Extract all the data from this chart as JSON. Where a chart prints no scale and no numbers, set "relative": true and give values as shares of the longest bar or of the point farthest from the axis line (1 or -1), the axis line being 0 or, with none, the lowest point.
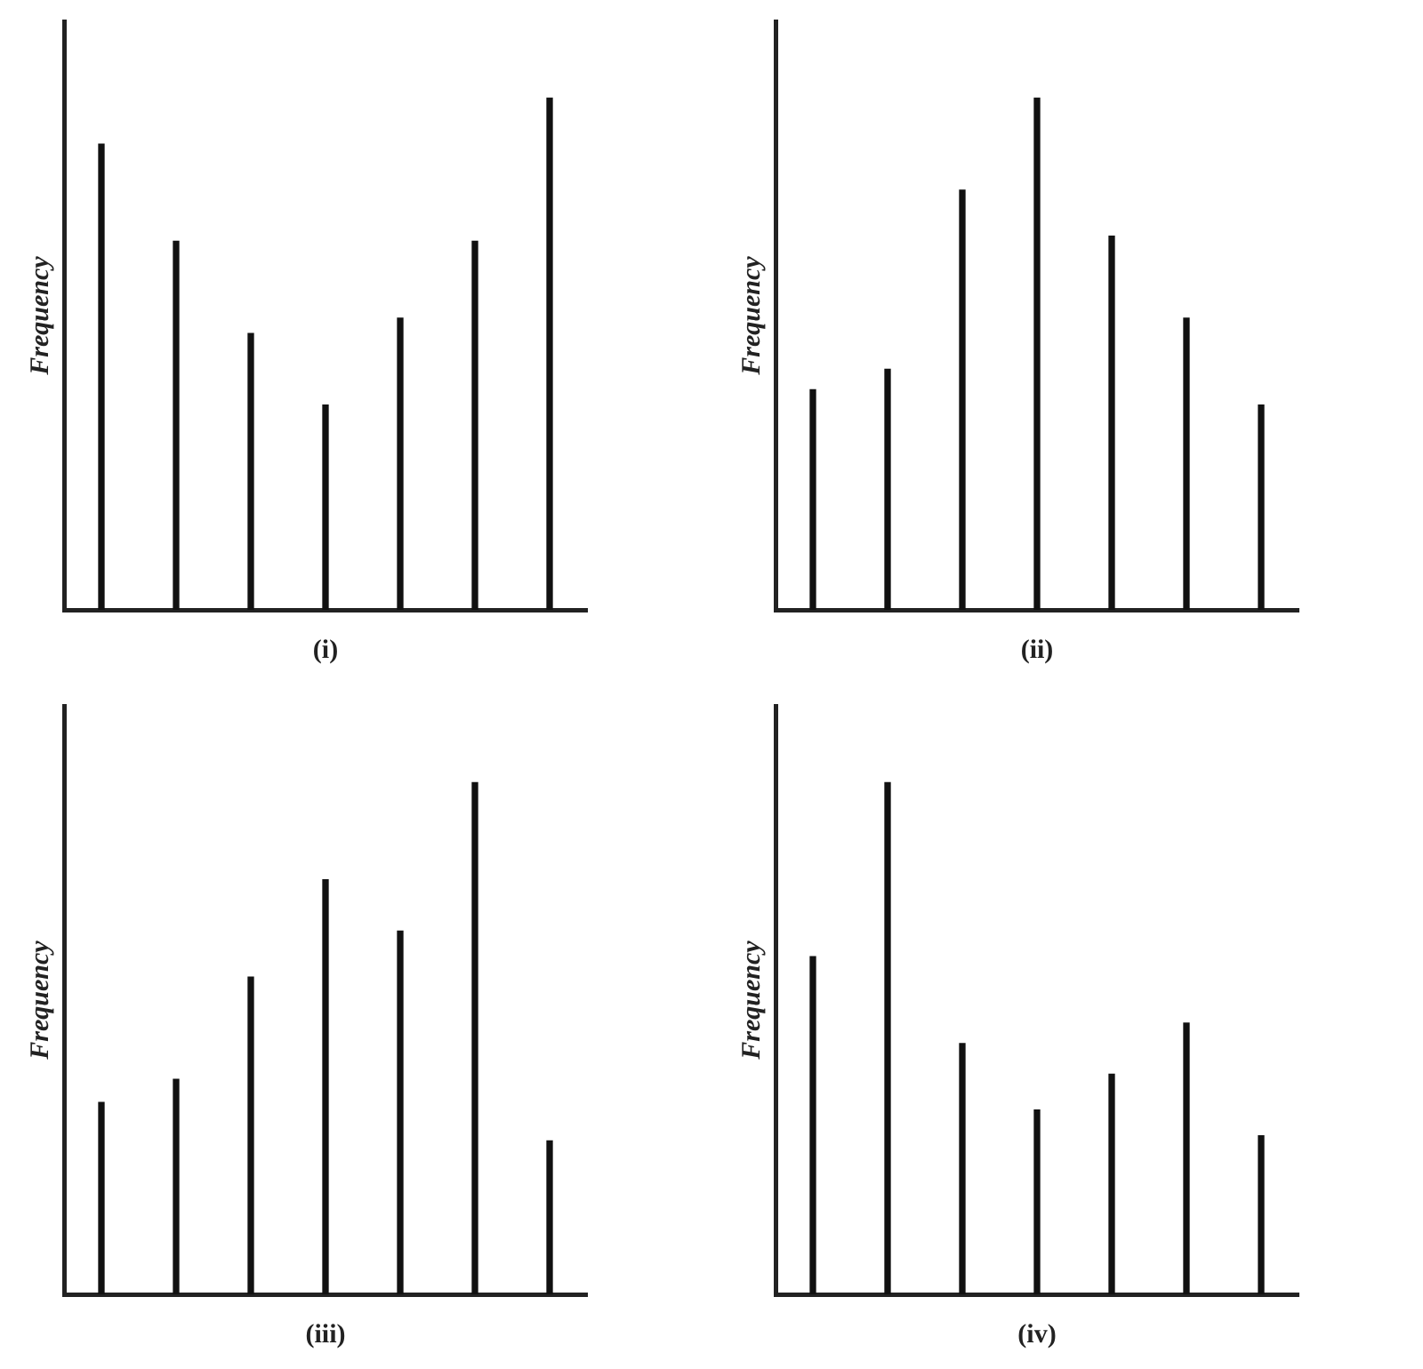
{
  "chart_data": [
    {
      "type": "bar",
      "relative": true,
      "xlabel": "(i)",
      "ylabel": "Frequency",
      "categories": [
        null,
        null,
        null,
        null,
        null,
        null,
        null
      ],
      "values": [
        0.91,
        0.72,
        0.54,
        0.4,
        0.57,
        0.72,
        1
      ],
      "color": "#111111",
      "grid": false,
      "legend": false,
      "tick_labels": false
    },
    {
      "type": "bar",
      "relative": true,
      "xlabel": "(ii)",
      "ylabel": "Frequency",
      "categories": [
        null,
        null,
        null,
        null,
        null,
        null,
        null
      ],
      "values": [
        0.43,
        0.47,
        0.82,
        1,
        0.73,
        0.57,
        0.4
      ],
      "color": "#111111",
      "grid": false,
      "legend": false,
      "tick_labels": false
    },
    {
      "type": "bar",
      "relative": true,
      "xlabel": "(iii)",
      "ylabel": "Frequency",
      "categories": [
        null,
        null,
        null,
        null,
        null,
        null,
        null
      ],
      "values": [
        0.375,
        0.42,
        0.62,
        0.81,
        0.71,
        1,
        0.3
      ],
      "color": "#111111",
      "grid": false,
      "legend": false,
      "tick_labels": false
    },
    {
      "type": "bar",
      "relative": true,
      "xlabel": "(iv)",
      "ylabel": "Frequency",
      "categories": [
        null,
        null,
        null,
        null,
        null,
        null,
        null
      ],
      "values": [
        0.66,
        1,
        0.49,
        0.36,
        0.43,
        0.53,
        0.31
      ],
      "color": "#111111",
      "grid": false,
      "legend": false,
      "tick_labels": false
    }
  ]
}
